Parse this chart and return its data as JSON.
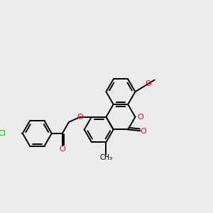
{
  "bg_color": "#ebebeb",
  "bond_color": "#000000",
  "bond_lw": 1.4,
  "dbo": 0.048,
  "atom_colors": {
    "O": "#ff0000",
    "Cl": "#00bb00"
  },
  "font_size": 8.5,
  "s": 0.32
}
